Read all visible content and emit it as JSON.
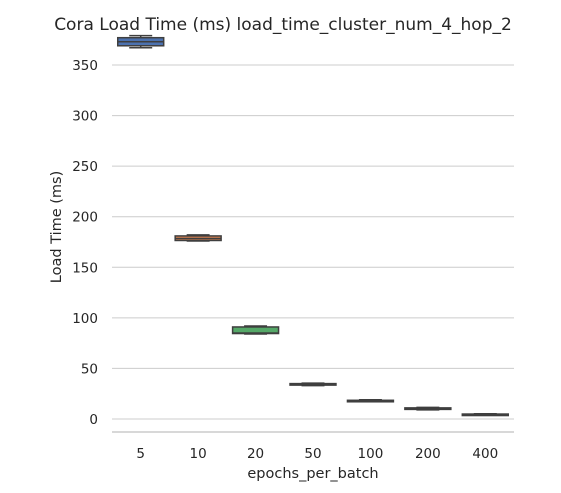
{
  "chart_data": {
    "type": "box",
    "title": "Cora Load Time (ms) load_time_cluster_num_4_hop_2",
    "xlabel": "epochs_per_batch",
    "ylabel": "Load Time (ms)",
    "categories": [
      "5",
      "10",
      "20",
      "50",
      "100",
      "200",
      "400"
    ],
    "yticks": [
      0,
      50,
      100,
      150,
      200,
      250,
      300,
      350
    ],
    "ylim": [
      -12.5,
      380
    ],
    "grid": "y",
    "boxes": [
      {
        "category": "5",
        "whisker_low": 367,
        "q1": 369,
        "median": 373,
        "q3": 377,
        "whisker_high": 379,
        "color": "#4c72b0"
      },
      {
        "category": "10",
        "whisker_low": 176,
        "q1": 176.5,
        "median": 178.5,
        "q3": 181,
        "whisker_high": 182,
        "color": "#dd8452"
      },
      {
        "category": "20",
        "whisker_low": 84,
        "q1": 84.5,
        "median": 85,
        "q3": 91,
        "whisker_high": 92,
        "color": "#55a868"
      },
      {
        "category": "50",
        "whisker_low": 33,
        "q1": 33.5,
        "median": 34,
        "q3": 35,
        "whisker_high": 35.5,
        "color": "#c44e52"
      },
      {
        "category": "100",
        "whisker_low": 17,
        "q1": 17.5,
        "median": 18,
        "q3": 18.5,
        "whisker_high": 19,
        "color": "#8172b3"
      },
      {
        "category": "200",
        "whisker_low": 9,
        "q1": 9.5,
        "median": 10,
        "q3": 11,
        "whisker_high": 11.5,
        "color": "#937860"
      },
      {
        "category": "400",
        "whisker_low": 4,
        "q1": 4.3,
        "median": 4.6,
        "q3": 4.9,
        "whisker_high": 5.2,
        "color": "#da8bc3"
      }
    ]
  }
}
